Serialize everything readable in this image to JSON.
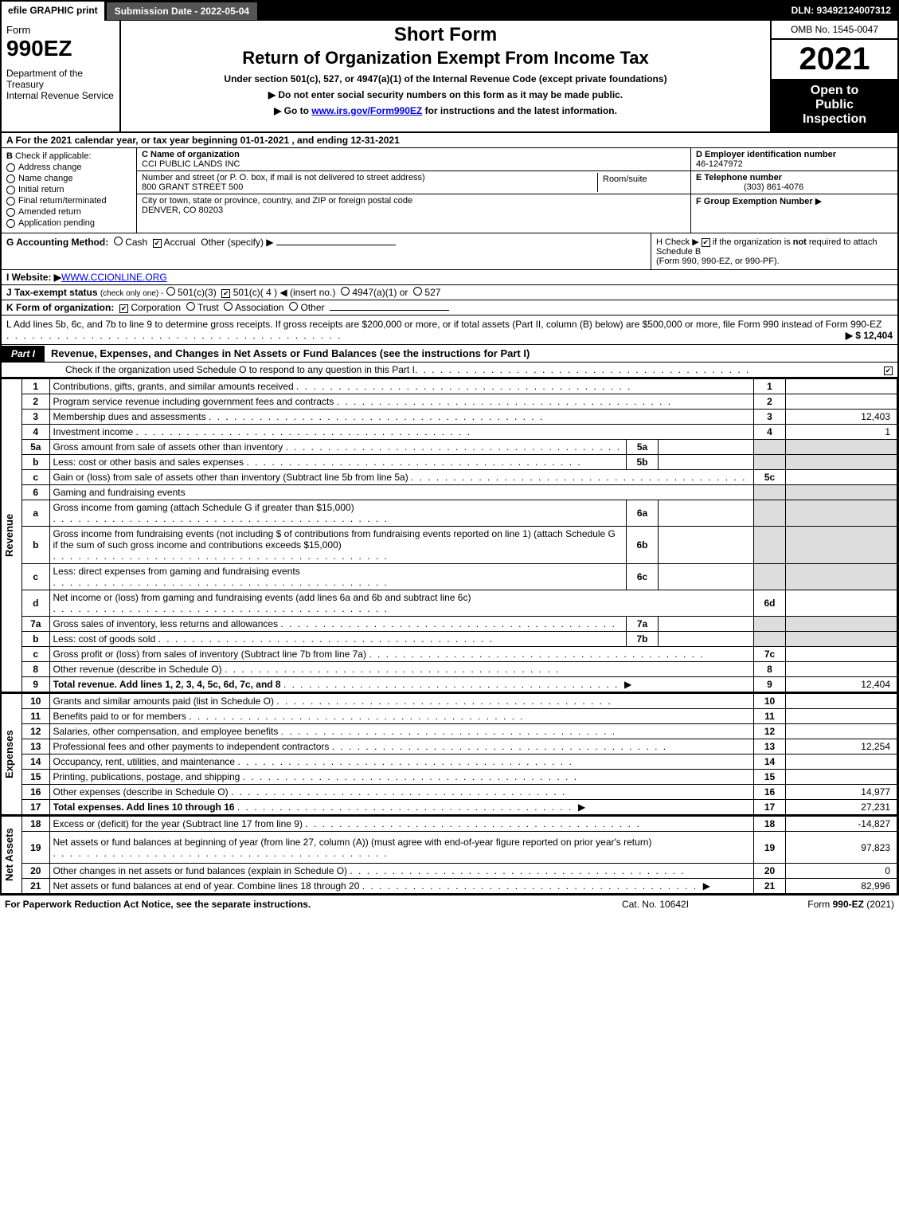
{
  "topbar": {
    "efile": "efile GRAPHIC print",
    "submission": "Submission Date - 2022-05-04",
    "dln": "DLN: 93492124007312"
  },
  "header": {
    "form_word": "Form",
    "form_no": "990EZ",
    "dept": "Department of the Treasury",
    "irs": "Internal Revenue Service",
    "title1": "Short Form",
    "title2": "Return of Organization Exempt From Income Tax",
    "subline": "Under section 501(c), 527, or 4947(a)(1) of the Internal Revenue Code (except private foundations)",
    "bullet1": "▶ Do not enter social security numbers on this form as it may be made public.",
    "bullet2_pre": "▶ Go to ",
    "bullet2_link": "www.irs.gov/Form990EZ",
    "bullet2_post": " for instructions and the latest information.",
    "omb": "OMB No. 1545-0047",
    "year": "2021",
    "open1": "Open to",
    "open2": "Public",
    "open3": "Inspection"
  },
  "A": "A  For the 2021 calendar year, or tax year beginning 01-01-2021 , and ending 12-31-2021",
  "B": {
    "hdr": "B",
    "lbl": "Check if applicable:",
    "opts": [
      "Address change",
      "Name change",
      "Initial return",
      "Final return/terminated",
      "Amended return",
      "Application pending"
    ]
  },
  "C": {
    "name_lbl": "C Name of organization",
    "name": "CCI PUBLIC LANDS INC",
    "addr_lbl": "Number and street (or P. O. box, if mail is not delivered to street address)",
    "addr": "800 GRANT STREET 500",
    "room_lbl": "Room/suite",
    "city_lbl": "City or town, state or province, country, and ZIP or foreign postal code",
    "city": "DENVER, CO  80203"
  },
  "D": {
    "ein_lbl": "D Employer identification number",
    "ein": "46-1247972",
    "tel_lbl": "E Telephone number",
    "tel": "(303) 861-4076",
    "grp_lbl": "F Group Exemption Number",
    "grp_arrow": "▶"
  },
  "G": {
    "lbl": "G Accounting Method:",
    "cash": "Cash",
    "accrual": "Accrual",
    "other": "Other (specify) ▶"
  },
  "H": {
    "text1": "H  Check ▶",
    "text2": " if the organization is ",
    "not": "not",
    "text3": " required to attach Schedule B",
    "text4": "(Form 990, 990-EZ, or 990-PF)."
  },
  "I": {
    "lbl": "I Website: ▶",
    "val": "WWW.CCIONLINE.ORG"
  },
  "J": {
    "lbl": "J Tax-exempt status",
    "small": "(check only one) -",
    "o1": "501(c)(3)",
    "o2": "501(c)( 4 ) ◀ (insert no.)",
    "o3": "4947(a)(1) or",
    "o4": "527"
  },
  "K": {
    "lbl": "K Form of organization:",
    "opts": [
      "Corporation",
      "Trust",
      "Association",
      "Other"
    ]
  },
  "L": {
    "text": "L Add lines 5b, 6c, and 7b to line 9 to determine gross receipts. If gross receipts are $200,000 or more, or if total assets (Part II, column (B) below) are $500,000 or more, file Form 990 instead of Form 990-EZ",
    "amt": "▶ $ 12,404"
  },
  "partI": {
    "tag": "Part I",
    "title": "Revenue, Expenses, and Changes in Net Assets or Fund Balances (see the instructions for Part I)",
    "sub": "Check if the organization used Schedule O to respond to any question in this Part I"
  },
  "revenue": {
    "vlabel": "Revenue",
    "rows": [
      {
        "n": "1",
        "d": "Contributions, gifts, grants, and similar amounts received",
        "bn": "1",
        "bv": ""
      },
      {
        "n": "2",
        "d": "Program service revenue including government fees and contracts",
        "bn": "2",
        "bv": ""
      },
      {
        "n": "3",
        "d": "Membership dues and assessments",
        "bn": "3",
        "bv": "12,403"
      },
      {
        "n": "4",
        "d": "Investment income",
        "bn": "4",
        "bv": "1"
      },
      {
        "n": "5a",
        "d": "Gross amount from sale of assets other than inventory",
        "sn": "5a",
        "sv": "",
        "shade": true
      },
      {
        "n": "b",
        "d": "Less: cost or other basis and sales expenses",
        "sn": "5b",
        "sv": "",
        "shade": true
      },
      {
        "n": "c",
        "d": "Gain or (loss) from sale of assets other than inventory (Subtract line 5b from line 5a)",
        "bn": "5c",
        "bv": ""
      },
      {
        "n": "6",
        "d": "Gaming and fundraising events",
        "shade": true,
        "noright": true
      },
      {
        "n": "a",
        "d": "Gross income from gaming (attach Schedule G if greater than $15,000)",
        "sn": "6a",
        "sv": "",
        "shade": true
      },
      {
        "n": "b",
        "d": "Gross income from fundraising events (not including $                    of contributions from fundraising events reported on line 1) (attach Schedule G if the sum of such gross income and contributions exceeds $15,000)",
        "sn": "6b",
        "sv": "",
        "shade": true,
        "tall": true
      },
      {
        "n": "c",
        "d": "Less: direct expenses from gaming and fundraising events",
        "sn": "6c",
        "sv": "",
        "shade": true
      },
      {
        "n": "d",
        "d": "Net income or (loss) from gaming and fundraising events (add lines 6a and 6b and subtract line 6c)",
        "bn": "6d",
        "bv": ""
      },
      {
        "n": "7a",
        "d": "Gross sales of inventory, less returns and allowances",
        "sn": "7a",
        "sv": "",
        "shade": true
      },
      {
        "n": "b",
        "d": "Less: cost of goods sold",
        "sn": "7b",
        "sv": "",
        "shade": true
      },
      {
        "n": "c",
        "d": "Gross profit or (loss) from sales of inventory (Subtract line 7b from line 7a)",
        "bn": "7c",
        "bv": ""
      },
      {
        "n": "8",
        "d": "Other revenue (describe in Schedule O)",
        "bn": "8",
        "bv": ""
      },
      {
        "n": "9",
        "d": "Total revenue. Add lines 1, 2, 3, 4, 5c, 6d, 7c, and 8",
        "bn": "9",
        "bv": "12,404",
        "bold": true,
        "arrow": true
      }
    ]
  },
  "expenses": {
    "vlabel": "Expenses",
    "rows": [
      {
        "n": "10",
        "d": "Grants and similar amounts paid (list in Schedule O)",
        "bn": "10",
        "bv": ""
      },
      {
        "n": "11",
        "d": "Benefits paid to or for members",
        "bn": "11",
        "bv": ""
      },
      {
        "n": "12",
        "d": "Salaries, other compensation, and employee benefits",
        "bn": "12",
        "bv": ""
      },
      {
        "n": "13",
        "d": "Professional fees and other payments to independent contractors",
        "bn": "13",
        "bv": "12,254"
      },
      {
        "n": "14",
        "d": "Occupancy, rent, utilities, and maintenance",
        "bn": "14",
        "bv": ""
      },
      {
        "n": "15",
        "d": "Printing, publications, postage, and shipping",
        "bn": "15",
        "bv": ""
      },
      {
        "n": "16",
        "d": "Other expenses (describe in Schedule O)",
        "bn": "16",
        "bv": "14,977"
      },
      {
        "n": "17",
        "d": "Total expenses. Add lines 10 through 16",
        "bn": "17",
        "bv": "27,231",
        "bold": true,
        "arrow": true
      }
    ]
  },
  "netassets": {
    "vlabel": "Net Assets",
    "rows": [
      {
        "n": "18",
        "d": "Excess or (deficit) for the year (Subtract line 17 from line 9)",
        "bn": "18",
        "bv": "-14,827"
      },
      {
        "n": "19",
        "d": "Net assets or fund balances at beginning of year (from line 27, column (A)) (must agree with end-of-year figure reported on prior year's return)",
        "bn": "19",
        "bv": "97,823",
        "tall": true
      },
      {
        "n": "20",
        "d": "Other changes in net assets or fund balances (explain in Schedule O)",
        "bn": "20",
        "bv": "0"
      },
      {
        "n": "21",
        "d": "Net assets or fund balances at end of year. Combine lines 18 through 20",
        "bn": "21",
        "bv": "82,996",
        "arrow": true
      }
    ]
  },
  "footer": {
    "l": "For Paperwork Reduction Act Notice, see the separate instructions.",
    "m": "Cat. No. 10642I",
    "r_pre": "Form ",
    "r_bold": "990-EZ",
    "r_post": " (2021)"
  },
  "checked": "✔"
}
